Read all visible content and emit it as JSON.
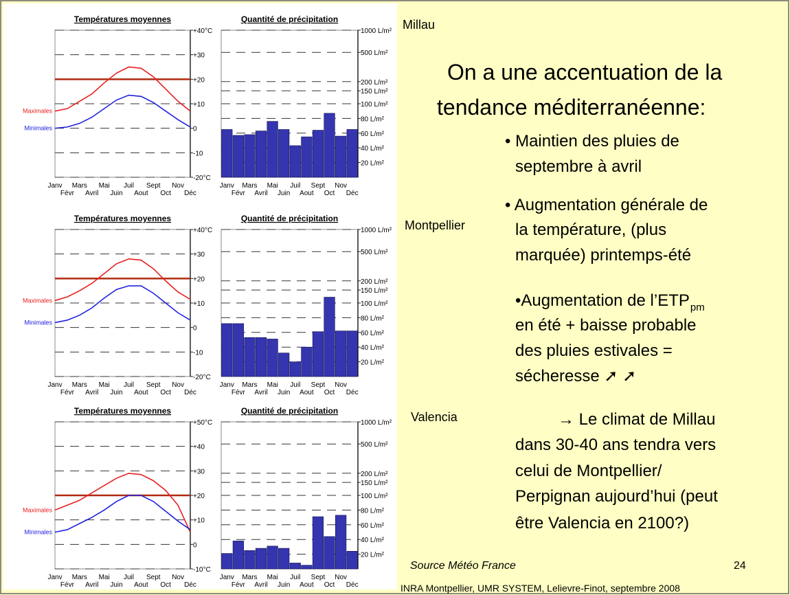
{
  "chart_data": [
    {
      "type": "line",
      "title": "Températures moyennes",
      "categories": [
        "Janv",
        "Févr",
        "Mars",
        "Avril",
        "Mai",
        "Juin",
        "Juil",
        "Aout",
        "Sept",
        "Oct",
        "Nov",
        "Déc"
      ],
      "series": [
        {
          "name": "Maximales",
          "color": "#e82020",
          "values": [
            7,
            8,
            11,
            14,
            18.5,
            22.5,
            25,
            24.5,
            21,
            16,
            11,
            7
          ]
        },
        {
          "name": "Minimales",
          "color": "#2020e0",
          "values": [
            0,
            0.5,
            2,
            4.5,
            8,
            11.5,
            13.5,
            13,
            10.5,
            7,
            3.5,
            0.5
          ]
        }
      ],
      "ylim": [
        -20,
        40
      ],
      "yticks": [
        {
          "value": 40,
          "label": "+40°C"
        },
        {
          "value": 30,
          "label": "+30"
        },
        {
          "value": 20,
          "label": "+20"
        },
        {
          "value": 10,
          "label": "+10"
        },
        0,
        -10,
        {
          "value": -20,
          "label": "-20°C"
        }
      ],
      "reference_line": 20,
      "reference_color": "#b02a10",
      "grid": true
    },
    {
      "type": "bar",
      "title": "Quantité de précipitation",
      "categories": [
        "Janv",
        "Févr",
        "Mars",
        "Avril",
        "Mai",
        "Juin",
        "Juil",
        "Aout",
        "Sept",
        "Oct",
        "Nov",
        "Déc"
      ],
      "values": [
        65,
        57,
        58,
        63,
        76,
        65,
        43,
        55,
        64,
        87,
        56,
        65
      ],
      "color": "#3535b0",
      "ylim": [
        0,
        1000
      ],
      "yscale": "log",
      "linear_until": 100,
      "yticks": [
        {
          "value": 1000,
          "label": "1000 L/m²"
        },
        {
          "value": 500,
          "label": "500 L/m²"
        },
        {
          "value": 200,
          "label": "200 L/m²"
        },
        {
          "value": 150,
          "label": "150 L/m²"
        },
        {
          "value": 100,
          "label": "100 L/m²"
        },
        {
          "value": 80,
          "label": "80 L/m²"
        },
        {
          "value": 60,
          "label": "60 L/m²"
        },
        {
          "value": 40,
          "label": "40 L/m²"
        },
        {
          "value": 20,
          "label": "20 L/m²"
        }
      ],
      "grid": true
    },
    {
      "type": "line",
      "title": "Températures moyennes",
      "categories": [
        "Janv",
        "Févr",
        "Mars",
        "Avril",
        "Mai",
        "Juin",
        "Juil",
        "Aout",
        "Sept",
        "Oct",
        "Nov",
        "Déc"
      ],
      "series": [
        {
          "name": "Maximales",
          "color": "#e82020",
          "values": [
            11,
            12.5,
            15,
            18,
            22,
            26,
            28,
            27.5,
            24,
            19,
            14.5,
            11.5
          ]
        },
        {
          "name": "Minimales",
          "color": "#2020e0",
          "values": [
            2,
            3,
            5,
            8,
            12,
            15.5,
            17,
            17,
            14,
            10,
            6,
            3
          ]
        }
      ],
      "ylim": [
        -20,
        40
      ],
      "yticks": [
        {
          "value": 40,
          "label": "+40°C"
        },
        {
          "value": 30,
          "label": "+30"
        },
        {
          "value": 20,
          "label": "+20"
        },
        {
          "value": 10,
          "label": "+10"
        },
        0,
        -10,
        {
          "value": -20,
          "label": "-20°C"
        }
      ],
      "reference_line": 20,
      "reference_color": "#b02a10",
      "grid": true
    },
    {
      "type": "bar",
      "title": "Quantité de précipitation",
      "categories": [
        "Janv",
        "Févr",
        "Mars",
        "Avril",
        "Mai",
        "Juin",
        "Juil",
        "Aout",
        "Sept",
        "Oct",
        "Nov",
        "Déc"
      ],
      "values": [
        72,
        72,
        53,
        53,
        51,
        32,
        20,
        40,
        61,
        120,
        62,
        62
      ],
      "color": "#3535b0",
      "ylim": [
        0,
        1000
      ],
      "yscale": "log",
      "linear_until": 100,
      "yticks": [
        {
          "value": 1000,
          "label": "1000 L/m²"
        },
        {
          "value": 500,
          "label": "500 L/m²"
        },
        {
          "value": 200,
          "label": "200 L/m²"
        },
        {
          "value": 150,
          "label": "150 L/m²"
        },
        {
          "value": 100,
          "label": "100 L/m²"
        },
        {
          "value": 80,
          "label": "80 L/m²"
        },
        {
          "value": 60,
          "label": "60 L/m²"
        },
        {
          "value": 40,
          "label": "40 L/m²"
        },
        {
          "value": 20,
          "label": "20 L/m²"
        }
      ],
      "grid": true
    },
    {
      "type": "line",
      "title": "Températures moyennes",
      "categories": [
        "Janv",
        "Févr",
        "Mars",
        "Avril",
        "Mai",
        "Juin",
        "Juil",
        "Aout",
        "Sept",
        "Oct",
        "Nov",
        "Déc"
      ],
      "series": [
        {
          "name": "Maximales",
          "color": "#e82020",
          "values": [
            14,
            16,
            18,
            21,
            24,
            27,
            29,
            28.5,
            26,
            22,
            16,
            5
          ]
        },
        {
          "name": "Minimales",
          "color": "#2020e0",
          "values": [
            5,
            6,
            8.5,
            11,
            14,
            17.5,
            20,
            20,
            17.5,
            13.5,
            9.5,
            6
          ]
        }
      ],
      "ylim": [
        -10,
        50
      ],
      "yticks": [
        {
          "value": 50,
          "label": "+50°C"
        },
        {
          "value": 40,
          "label": "+40"
        },
        {
          "value": 30,
          "label": "+30"
        },
        {
          "value": 20,
          "label": "+20"
        },
        {
          "value": 10,
          "label": "+10"
        },
        0,
        {
          "value": -10,
          "label": "-10°C"
        }
      ],
      "reference_line": 20,
      "reference_color": "#b02a10",
      "grid": true
    },
    {
      "type": "bar",
      "title": "Quantité de précipitation",
      "categories": [
        "Janv",
        "Févr",
        "Mars",
        "Avril",
        "Mai",
        "Juin",
        "Juil",
        "Aout",
        "Sept",
        "Oct",
        "Nov",
        "Déc"
      ],
      "values": [
        21,
        38,
        25,
        28,
        31,
        28,
        8,
        5,
        71,
        44,
        73,
        24
      ],
      "color": "#3535b0",
      "ylim": [
        0,
        1000
      ],
      "yscale": "log",
      "linear_until": 100,
      "yticks": [
        {
          "value": 1000,
          "label": "1000 L/m²"
        },
        {
          "value": 500,
          "label": "500 L/m²"
        },
        {
          "value": 200,
          "label": "200 L/m²"
        },
        {
          "value": 150,
          "label": "150 L/m²"
        },
        {
          "value": 100,
          "label": "100 L/m²"
        },
        {
          "value": 80,
          "label": "80 L/m²"
        },
        {
          "value": 60,
          "label": "60 L/m²"
        },
        {
          "value": 40,
          "label": "40 L/m²"
        },
        {
          "value": 20,
          "label": "20 L/m²"
        }
      ],
      "grid": true
    }
  ],
  "slide": {
    "places": [
      "Millau",
      "Montpellier",
      "Valencia"
    ],
    "heading": [
      "On a une accentuation de la",
      "tendance méditerranéenne:"
    ],
    "bullets": [
      [
        "• Maintien des pluies de",
        "septembre à avril"
      ],
      [
        "• Augmentation générale de",
        "la température, (plus",
        "marquée) printemps-été"
      ]
    ],
    "etp_bullet": {
      "lines": [
        "•Augmentation de l’ETP",
        "en été + baisse probable",
        "des pluies estivales =",
        "sécheresse ➚ ➚"
      ],
      "subscript": "pm"
    },
    "conclusion": [
      "→ Le climat de Millau",
      "dans 30-40 ans tendra vers",
      "celui de Montpellier/",
      "Perpignan aujourd’hui (peut",
      "être Valencia en 2100?)"
    ],
    "source": "Source Météo France",
    "page_number": "24",
    "footer": "INRA Montpellier, UMR SYSTEM, Lelievre-Finot, septembre 2008"
  }
}
